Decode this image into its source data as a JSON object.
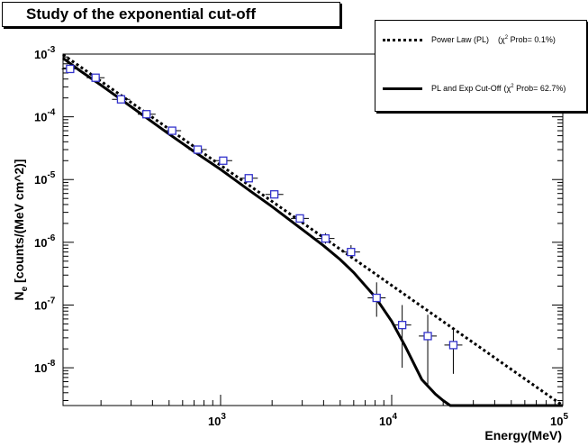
{
  "chart_data": {
    "type": "scatter",
    "title": "Study of the exponential cut-off",
    "xlabel": "Energy(MeV)",
    "ylabel": "N_e [counts/(MeV cm^2)]",
    "x_scale": "log",
    "y_scale": "log",
    "xlim": [
      120,
      100000
    ],
    "ylim": [
      2.5e-09,
      0.001
    ],
    "x_tick_labels": [
      {
        "value": 1000,
        "base": "10",
        "exp": "3"
      },
      {
        "value": 10000,
        "base": "10",
        "exp": "4"
      },
      {
        "value": 100000,
        "base": "10",
        "exp": "5"
      }
    ],
    "y_tick_labels": [
      {
        "value": 0.001,
        "base": "10",
        "exp": "-3"
      },
      {
        "value": 0.0001,
        "base": "10",
        "exp": "-4"
      },
      {
        "value": 1e-05,
        "base": "10",
        "exp": "-5"
      },
      {
        "value": 1e-06,
        "base": "10",
        "exp": "-6"
      },
      {
        "value": 1e-07,
        "base": "10",
        "exp": "-7"
      },
      {
        "value": 1e-08,
        "base": "10",
        "exp": "-8"
      }
    ],
    "points": [
      {
        "x": 132,
        "y": 0.00058,
        "xerr": [
          118,
          150
        ]
      },
      {
        "x": 186,
        "y": 0.00042,
        "xerr": [
          165,
          210
        ]
      },
      {
        "x": 262,
        "y": 0.00019,
        "xerr": [
          232,
          296
        ]
      },
      {
        "x": 369,
        "y": 0.00011,
        "xerr": [
          328,
          417
        ]
      },
      {
        "x": 521,
        "y": 6e-05,
        "xerr": [
          462,
          588
        ]
      },
      {
        "x": 735,
        "y": 3e-05,
        "xerr": [
          651,
          830
        ]
      },
      {
        "x": 1036,
        "y": 2e-05,
        "xerr": [
          919,
          1170
        ]
      },
      {
        "x": 1461,
        "y": 1.05e-05,
        "xerr": [
          1296,
          1650
        ]
      },
      {
        "x": 2061,
        "y": 5.8e-06,
        "xerr": [
          1828,
          2327
        ]
      },
      {
        "x": 2907,
        "y": 2.4e-06,
        "xerr": [
          2579,
          3283
        ]
      },
      {
        "x": 4101,
        "y": 1.15e-06,
        "xerr": [
          3638,
          4631
        ],
        "yerr": [
          9.5e-07,
          1.4e-06
        ]
      },
      {
        "x": 5786,
        "y": 7e-07,
        "xerr": [
          5132,
          6533
        ],
        "yerr": [
          5.5e-07,
          9e-07
        ]
      },
      {
        "x": 8163,
        "y": 1.3e-07,
        "xerr": [
          7240,
          9217
        ],
        "yerr": [
          6.5e-08,
          2.3e-07
        ]
      },
      {
        "x": 11517,
        "y": 4.8e-08,
        "xerr": [
          10213,
          13003
        ],
        "yerr": [
          1e-08,
          1e-07
        ]
      },
      {
        "x": 16248,
        "y": 3.2e-08,
        "xerr": [
          14408,
          18345
        ],
        "yerr": [
          5e-09,
          7e-08
        ]
      },
      {
        "x": 22923,
        "y": 2.3e-08,
        "xerr": [
          20326,
          25882
        ],
        "yerr": [
          8e-09,
          4e-08
        ]
      }
    ],
    "series": [
      {
        "name": "Power Law (PL)",
        "style": "dotted",
        "color": "#000000",
        "x": [
          120,
          100000
        ],
        "y": [
          0.00098,
          2.5e-09
        ]
      },
      {
        "name": "PL and Exp Cut-Off",
        "style": "solid",
        "color": "#000000",
        "x": [
          120,
          150,
          200,
          300,
          500,
          700,
          1000,
          1500,
          2000,
          3000,
          4000,
          5000,
          6000,
          8000,
          10000,
          12000,
          15000,
          18000,
          20000,
          22000,
          25000,
          100000
        ],
        "y": [
          0.00086,
          0.00055,
          0.00032,
          0.000145,
          5.3e-05,
          2.8e-05,
          1.45e-05,
          6.5e-06,
          3.7e-06,
          1.6e-06,
          8.8e-07,
          5.3e-07,
          3.3e-07,
          1.35e-07,
          5.5e-08,
          2.2e-08,
          6.5e-09,
          3.8e-09,
          3e-09,
          2.5e-09,
          2.5e-09,
          2.5e-09
        ]
      }
    ],
    "legend": [
      {
        "name": "Power Law (PL)",
        "stat_pre": "(",
        "stat_chi": "χ",
        "stat_sup": "2",
        "stat_post": " Prob= 0.1%)"
      },
      {
        "name": "PL and Exp Cut-Off",
        "stat_pre": "(",
        "stat_chi": "χ",
        "stat_sup": "2",
        "stat_post": " Prob= 62.7%)"
      }
    ],
    "legend_position": "top-right",
    "marker_color": "#3333cc",
    "grid": false
  }
}
